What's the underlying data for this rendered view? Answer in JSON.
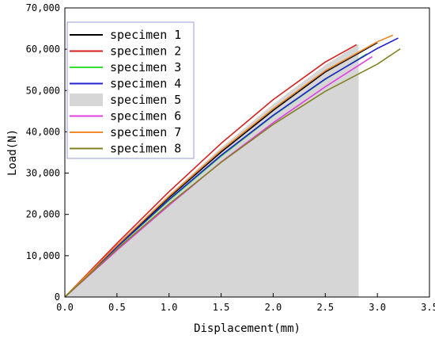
{
  "chart_data": {
    "type": "line",
    "xlabel": "Displacement(mm)",
    "ylabel": "Load(N)",
    "xlim": [
      0,
      3.5
    ],
    "ylim": [
      0,
      70000
    ],
    "xticks": [
      0.0,
      0.5,
      1.0,
      1.5,
      2.0,
      2.5,
      3.0,
      3.5
    ],
    "xtick_labels": [
      "0.0",
      "0.5",
      "1.0",
      "1.5",
      "2.0",
      "2.5",
      "3.0",
      "3.5"
    ],
    "yticks": [
      0,
      10000,
      20000,
      30000,
      40000,
      50000,
      60000,
      70000
    ],
    "ytick_labels": [
      "0",
      "10,000",
      "20,000",
      "30,000",
      "40,000",
      "50,000",
      "60,000",
      "70,000"
    ],
    "grid": false,
    "legend_position": "top-left",
    "series": [
      {
        "name": "specimen 1",
        "color": "#000000",
        "style": "line",
        "x": [
          0,
          0.5,
          1.0,
          1.5,
          2.0,
          2.5,
          3.0
        ],
        "y": [
          0,
          12300,
          24100,
          35100,
          45200,
          54500,
          61600
        ]
      },
      {
        "name": "specimen 2",
        "color": "#d62020",
        "style": "line",
        "x": [
          0,
          0.5,
          1.0,
          1.5,
          2.0,
          2.5,
          2.8
        ],
        "y": [
          0,
          13000,
          25500,
          37200,
          47800,
          56900,
          61100
        ]
      },
      {
        "name": "specimen 3",
        "color": "#33dd33",
        "style": "line",
        "x": [
          0,
          0.5,
          1.0,
          1.5,
          2.0,
          2.5,
          2.9
        ],
        "y": [
          0,
          12000,
          23400,
          34100,
          43900,
          52700,
          58900
        ]
      },
      {
        "name": "specimen 4",
        "color": "#2020d0",
        "style": "line",
        "x": [
          0,
          0.5,
          1.0,
          1.5,
          2.0,
          2.5,
          3.0,
          3.2
        ],
        "y": [
          0,
          12100,
          23600,
          34300,
          44000,
          52800,
          60200,
          62700
        ]
      },
      {
        "name": "specimen 5",
        "color": "#d6d6d6",
        "style": "area",
        "x": [
          0,
          0.5,
          1.0,
          1.5,
          2.0,
          2.5,
          2.82
        ],
        "y": [
          0,
          12600,
          24800,
          36200,
          46700,
          56200,
          61300
        ]
      },
      {
        "name": "specimen 6",
        "color": "#e040e0",
        "style": "line",
        "x": [
          0,
          0.5,
          1.0,
          1.5,
          2.0,
          2.5,
          2.95
        ],
        "y": [
          0,
          11300,
          22200,
          32700,
          42200,
          50900,
          58200
        ]
      },
      {
        "name": "specimen 7",
        "color": "#f08a2a",
        "style": "line",
        "x": [
          0,
          0.5,
          1.0,
          1.5,
          2.0,
          2.5,
          3.0,
          3.15
        ],
        "y": [
          0,
          12500,
          24400,
          35500,
          45600,
          54800,
          61800,
          63400
        ]
      },
      {
        "name": "specimen 8",
        "color": "#808020",
        "style": "line",
        "x": [
          0,
          0.5,
          1.0,
          1.5,
          2.0,
          2.5,
          3.0,
          3.22
        ],
        "y": [
          0,
          11600,
          22500,
          32600,
          41800,
          49800,
          56400,
          60100
        ]
      }
    ]
  }
}
